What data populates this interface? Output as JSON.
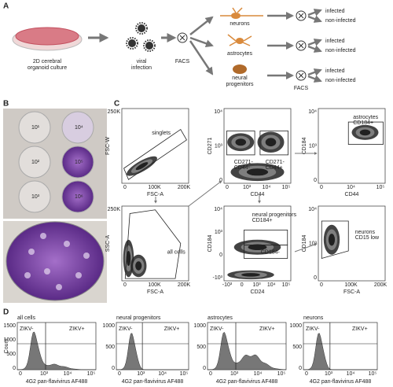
{
  "panel_a": {
    "label": "A",
    "culture": [
      "2D cerebral",
      "organoid culture"
    ],
    "infection": [
      "viral",
      "infection"
    ],
    "facs": "FACS",
    "populations": [
      {
        "name": [
          "neurons"
        ],
        "infected": "infected",
        "non_infected": "non-infected"
      },
      {
        "name": [
          "astrocytes"
        ],
        "infected": "infected",
        "non_infected": "non-infected"
      },
      {
        "name": [
          "neural",
          "progenitors"
        ],
        "facs": "FACS",
        "infected": "infected",
        "non_infected": "non-infected"
      }
    ]
  },
  "panel_b": {
    "label": "B",
    "wells": [
      "10¹",
      "10⁴",
      "10²",
      "10⁵",
      "10³",
      "10⁶"
    ]
  },
  "panel_c": {
    "label": "C",
    "plots": [
      {
        "y_label": "FSC-W",
        "x_label": "FSC-A",
        "y_ticks": [
          "250K"
        ],
        "x_ticks": [
          "0",
          "100K",
          "200K"
        ],
        "gates": [
          {
            "lines": [
              "singlets"
            ]
          }
        ]
      },
      {
        "y_label": "SSC-A",
        "x_label": "FSC-A",
        "y_ticks": [
          "250K"
        ],
        "x_ticks": [
          "0",
          "100K",
          "200K"
        ],
        "gates": [
          {
            "lines": [
              "all cells"
            ]
          }
        ]
      },
      {
        "y_label": "CD271",
        "x_label": "CD44",
        "y_ticks": [
          "10⁴",
          "10³",
          "0"
        ],
        "x_ticks": [
          "0",
          "10³",
          "10⁴",
          "10⁵"
        ],
        "gates": [
          {
            "lines": [
              "CD271-",
              "CD44-"
            ]
          },
          {
            "lines": [
              "CD271-",
              "CD44+"
            ]
          }
        ]
      },
      {
        "y_label": "CD184",
        "x_label": "CD44",
        "y_ticks": [
          "10⁴",
          "10³",
          "0"
        ],
        "x_ticks": [
          "0",
          "10⁴",
          "10⁵"
        ],
        "gates": [
          {
            "lines": [
              "astrocytes",
              "CD184+"
            ]
          }
        ]
      },
      {
        "y_label": "CD184",
        "x_label": "CD24",
        "y_ticks": [
          "10⁴",
          "10³",
          "0",
          "-10³"
        ],
        "x_ticks": [
          "-10³",
          "0",
          "10³",
          "10⁴",
          "10⁵"
        ],
        "gates": [
          {
            "lines": [
              "neural progenitors",
              "CD184+"
            ]
          },
          {
            "lines": [
              "CD184-"
            ]
          }
        ]
      },
      {
        "y_label": "CD184",
        "x_label": "FSC-A",
        "y_ticks": [
          "10⁴",
          "10³",
          "0"
        ],
        "x_ticks": [
          "0",
          "100K",
          "200K"
        ],
        "gates": [
          {
            "lines": [
              "neurons",
              "CD15 low"
            ]
          }
        ]
      }
    ]
  },
  "panel_d": {
    "label": "D",
    "y_label": "Count",
    "histograms": [
      {
        "title": "all cells",
        "x_label": "4G2 pan-flavivirus AF488",
        "gates": [
          "ZIKV-",
          "ZIKV+"
        ],
        "y_ticks": [
          "1500",
          "1000",
          "500",
          "0"
        ],
        "x_ticks": [
          "0",
          "10³",
          "10⁴",
          "10⁵"
        ]
      },
      {
        "title": "neural progenitors",
        "x_label": "4G2 pan-flavivirus AF488",
        "gates": [
          "ZIKV-",
          "ZIKV+"
        ],
        "y_ticks": [
          "1000",
          "500",
          "0"
        ],
        "x_ticks": [
          "0",
          "10³",
          "10⁴",
          "10⁵"
        ]
      },
      {
        "title": "astrocytes",
        "x_label": "4G2 pan-flavivirus AF488",
        "gates": [
          "ZIKV-",
          "ZIKV+"
        ],
        "y_ticks": [
          "1000",
          "500",
          "0"
        ],
        "x_ticks": [
          "0",
          "10³",
          "10⁴",
          "10⁵"
        ]
      },
      {
        "title": "neurons",
        "x_label": "4G2 pan-flavivirus AF488",
        "gates": [
          "ZIKV-",
          "ZIKV+"
        ],
        "y_ticks": [
          "1000",
          "500",
          "0"
        ],
        "x_ticks": [
          "0",
          "10³",
          "10⁴",
          "10⁵"
        ]
      }
    ]
  }
}
